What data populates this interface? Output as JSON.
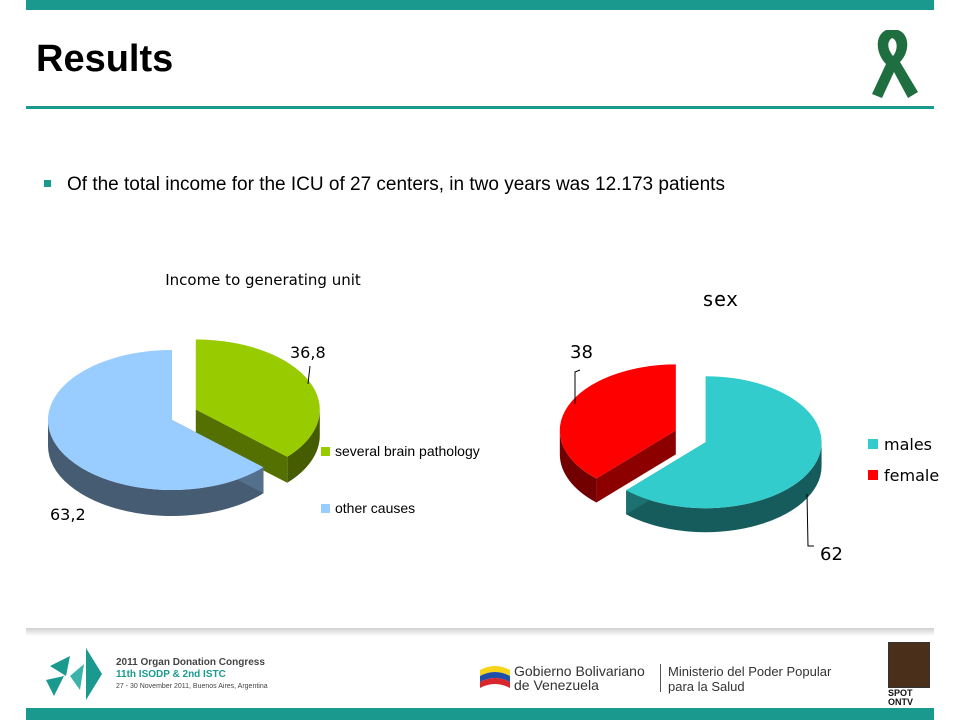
{
  "title": "Results",
  "bullet": "Of the total income for the ICU of 27 centers, in two years was 12.173 patients",
  "colors": {
    "accent": "#1a9a8f",
    "ribbon": "#1f6e3f"
  },
  "icons": {
    "ribbon": "awareness-ribbon-icon",
    "bullet": "square-bullet-icon"
  },
  "chart_data": [
    {
      "type": "pie",
      "title": "Income to generating unit",
      "categories": [
        "several brain pathology",
        "other causes"
      ],
      "values": [
        36.8,
        63.2
      ],
      "value_labels": [
        "36,8",
        "63,2"
      ],
      "colors": [
        "#99cc00",
        "#99ccff"
      ],
      "legend": "right"
    },
    {
      "type": "pie",
      "title": "sex",
      "categories": [
        "males",
        "female"
      ],
      "values": [
        62,
        38
      ],
      "value_labels": [
        "62",
        "38"
      ],
      "colors": [
        "#33cccc",
        "#ff0000"
      ],
      "legend": "right"
    }
  ],
  "footer": {
    "congress_line1": "2011 Organ Donation Congress",
    "congress_line2": "11th ISODP & 2nd ISTC",
    "congress_line3": "27 - 30 November 2011, Buenos Aires, Argentina",
    "gov_line1": "Gobierno Bolivariano",
    "gov_line2": "de Venezuela",
    "ministry_line1": "Ministerio del Poder Popular",
    "ministry_line2": "para la Salud",
    "spot_line1": "SPOT",
    "spot_line2": "ONTV"
  }
}
